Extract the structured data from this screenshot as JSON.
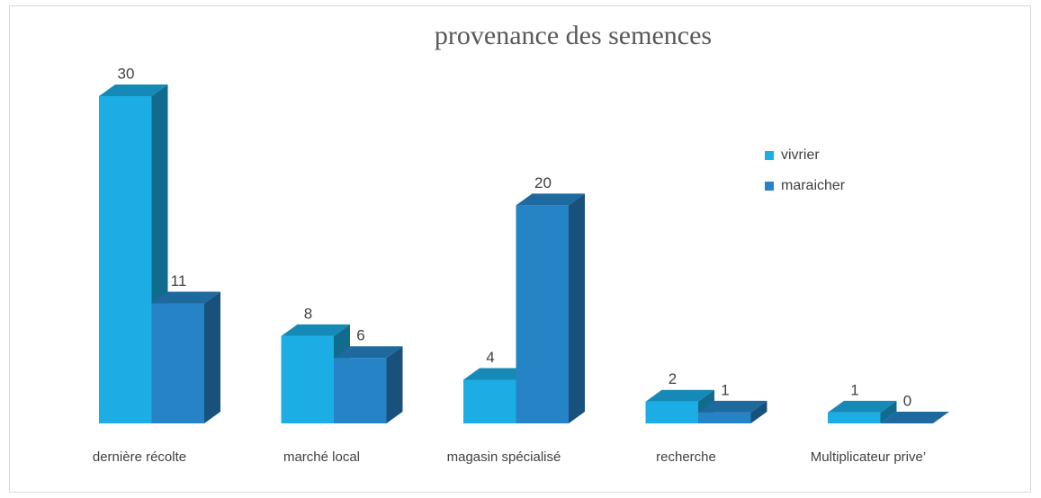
{
  "chart_data": {
    "type": "bar3d",
    "title": "provenance des  semences",
    "categories": [
      "dernière récolte",
      "marché local",
      "magasin spécialisé",
      "recherche",
      "Multiplicateur prive’"
    ],
    "series": [
      {
        "name": "vivrier",
        "color": "#1CADE4",
        "values": [
          30,
          8,
          4,
          2,
          1
        ]
      },
      {
        "name": "maraicher",
        "color": "#2683C6",
        "values": [
          11,
          6,
          20,
          1,
          0
        ]
      }
    ]
  }
}
